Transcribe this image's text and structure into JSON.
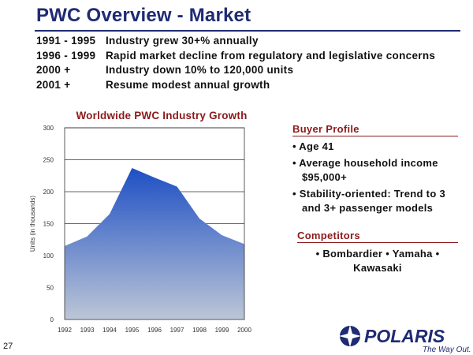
{
  "slide": {
    "title": "PWC Overview - Market",
    "page_number": "27"
  },
  "timeline": [
    {
      "period": "1991 - 1995",
      "description": "Industry grew 30+% annually"
    },
    {
      "period": "1996 - 1999",
      "description": "Rapid market decline from regulatory and legislative concerns"
    },
    {
      "period": "2000 +",
      "description": "Industry down 10% to 120,000 units"
    },
    {
      "period": "2001 +",
      "description": "Resume modest annual growth"
    }
  ],
  "chart_data": {
    "type": "area",
    "title": "Worldwide PWC Industry Growth",
    "xlabel": "",
    "ylabel": "Units (in thousands)",
    "x": [
      "1992",
      "1993",
      "1994",
      "1995",
      "1996",
      "1997",
      "1998",
      "1999",
      "2000"
    ],
    "values": [
      115,
      130,
      165,
      237,
      222,
      208,
      158,
      132,
      118
    ],
    "ylim": [
      0,
      300
    ],
    "yticks": [
      0,
      50,
      100,
      150,
      200,
      250,
      300
    ],
    "grid": true,
    "legend": "none",
    "colors": {
      "fill": "#1e4fc4",
      "fill_light": "#bcc6d6",
      "grid": "#333333"
    }
  },
  "buyer_profile": {
    "heading": "Buyer Profile",
    "items": [
      "• Age 41",
      "• Average household income $95,000+",
      "• Stability-oriented: Trend to 3 and 3+ passenger models"
    ]
  },
  "competitors": {
    "heading": "Competitors",
    "text": "• Bombardier • Yamaha • Kawasaki"
  },
  "logo": {
    "wordmark": "POLARIS",
    "tagline": "The Way Out.",
    "colors": {
      "primary": "#1f2b73"
    }
  }
}
